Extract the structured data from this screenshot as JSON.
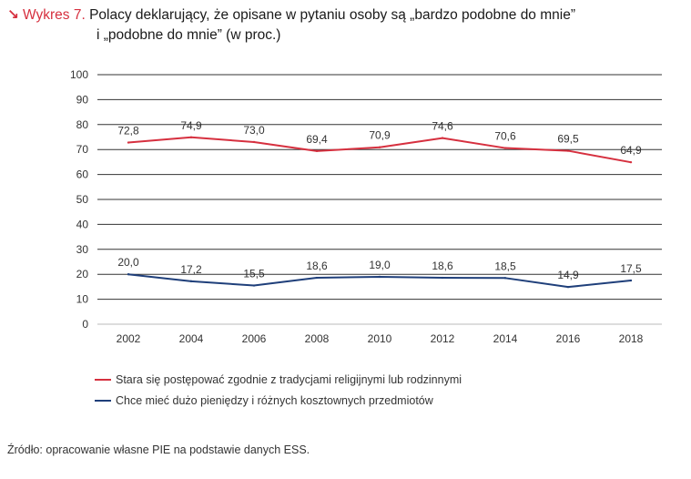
{
  "header": {
    "arrow": "↘",
    "label": "Wykres 7.",
    "title_line1": "Polacy deklarujący, że opisane w pytaniu osoby są „bardzo podobne do mnie”",
    "title_line2": "i „podobne do mnie” (w proc.)"
  },
  "chart_data": {
    "type": "line",
    "title": "Polacy deklarujący, że opisane w pytaniu osoby są „bardzo podobne do mnie” i „podobne do mnie” (w proc.)",
    "xlabel": "",
    "ylabel": "",
    "ylim": [
      0,
      100
    ],
    "yticks": [
      0,
      10,
      20,
      30,
      40,
      50,
      60,
      70,
      80,
      90,
      100
    ],
    "categories": [
      "2002",
      "2004",
      "2006",
      "2008",
      "2010",
      "2012",
      "2014",
      "2016",
      "2018"
    ],
    "data_labels": [
      [
        "72,8",
        "74,9",
        "73,0",
        "69,4",
        "70,9",
        "74,6",
        "70,6",
        "69,5",
        "64,9"
      ],
      [
        "20,0",
        "17,2",
        "15,5",
        "18,6",
        "19,0",
        "18,6",
        "18,5",
        "14,9",
        "17,5"
      ]
    ],
    "series": [
      {
        "name": "Stara się postępować zgodnie z tradycjami religijnymi lub rodzinnymi",
        "color": "#d6303f",
        "values": [
          72.8,
          74.9,
          73.0,
          69.4,
          70.9,
          74.6,
          70.6,
          69.5,
          64.9
        ]
      },
      {
        "name": "Chce mieć dużo pieniędzy i różnych kosztownych przedmiotów",
        "color": "#1f3f7a",
        "values": [
          20.0,
          17.2,
          15.5,
          18.6,
          19.0,
          18.6,
          18.5,
          14.9,
          17.5
        ]
      }
    ],
    "legend_position": "bottom",
    "grid": true
  },
  "legend": {
    "items": [
      {
        "label": "Stara się postępować zgodnie z tradycjami religijnymi lub rodzinnymi",
        "color": "#d6303f"
      },
      {
        "label": "Chce mieć dużo pieniędzy i różnych kosztownych przedmiotów",
        "color": "#1f3f7a"
      }
    ]
  },
  "source": "Źródło: opracowanie własne PIE na podstawie danych ESS."
}
